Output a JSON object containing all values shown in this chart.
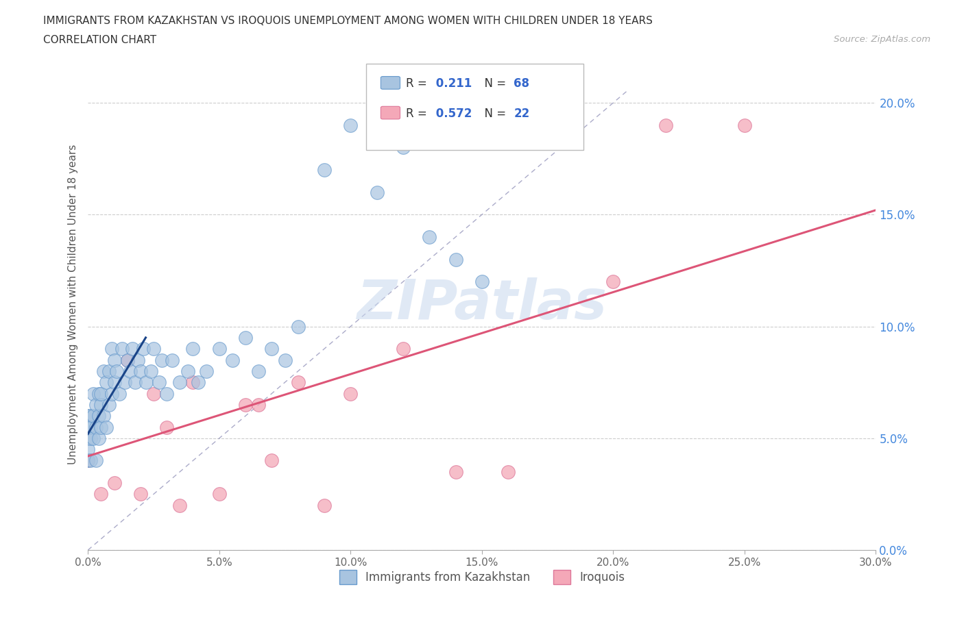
{
  "title_line1": "IMMIGRANTS FROM KAZAKHSTAN VS IROQUOIS UNEMPLOYMENT AMONG WOMEN WITH CHILDREN UNDER 18 YEARS",
  "title_line2": "CORRELATION CHART",
  "source_text": "Source: ZipAtlas.com",
  "ylabel": "Unemployment Among Women with Children Under 18 years",
  "watermark": "ZIPatlas",
  "xlim": [
    0.0,
    0.3
  ],
  "ylim": [
    0.0,
    0.22
  ],
  "xticks": [
    0.0,
    0.05,
    0.1,
    0.15,
    0.2,
    0.25,
    0.3
  ],
  "xticklabels": [
    "0.0%",
    "5.0%",
    "10.0%",
    "15.0%",
    "20.0%",
    "25.0%",
    "30.0%"
  ],
  "yticks": [
    0.0,
    0.05,
    0.1,
    0.15,
    0.2
  ],
  "yticklabels": [
    "0.0%",
    "5.0%",
    "10.0%",
    "15.0%",
    "20.0%"
  ],
  "kazakhstan_color": "#a8c4e0",
  "kazakhstan_edge": "#6699cc",
  "iroquois_color": "#f4a8b8",
  "iroquois_edge": "#dd7799",
  "kazakhstan_line_color": "#1a4488",
  "iroquois_line_color": "#dd5577",
  "diagonal_color": "#9090b8",
  "R_kazakhstan": 0.211,
  "N_kazakhstan": 68,
  "R_iroquois": 0.572,
  "N_iroquois": 22,
  "kazakhstan_x": [
    0.0,
    0.0,
    0.0,
    0.0,
    0.0,
    0.001,
    0.001,
    0.001,
    0.001,
    0.002,
    0.002,
    0.002,
    0.003,
    0.003,
    0.003,
    0.004,
    0.004,
    0.004,
    0.005,
    0.005,
    0.005,
    0.006,
    0.006,
    0.007,
    0.007,
    0.008,
    0.008,
    0.009,
    0.009,
    0.01,
    0.01,
    0.011,
    0.012,
    0.013,
    0.014,
    0.015,
    0.016,
    0.017,
    0.018,
    0.019,
    0.02,
    0.021,
    0.022,
    0.024,
    0.025,
    0.027,
    0.028,
    0.03,
    0.032,
    0.035,
    0.038,
    0.04,
    0.042,
    0.045,
    0.05,
    0.055,
    0.06,
    0.065,
    0.07,
    0.075,
    0.08,
    0.09,
    0.1,
    0.11,
    0.12,
    0.13,
    0.14,
    0.15
  ],
  "kazakhstan_y": [
    0.05,
    0.06,
    0.04,
    0.055,
    0.045,
    0.05,
    0.06,
    0.04,
    0.055,
    0.06,
    0.05,
    0.07,
    0.055,
    0.065,
    0.04,
    0.06,
    0.05,
    0.07,
    0.065,
    0.055,
    0.07,
    0.06,
    0.08,
    0.055,
    0.075,
    0.065,
    0.08,
    0.07,
    0.09,
    0.075,
    0.085,
    0.08,
    0.07,
    0.09,
    0.075,
    0.085,
    0.08,
    0.09,
    0.075,
    0.085,
    0.08,
    0.09,
    0.075,
    0.08,
    0.09,
    0.075,
    0.085,
    0.07,
    0.085,
    0.075,
    0.08,
    0.09,
    0.075,
    0.08,
    0.09,
    0.085,
    0.095,
    0.08,
    0.09,
    0.085,
    0.1,
    0.17,
    0.19,
    0.16,
    0.18,
    0.14,
    0.13,
    0.12
  ],
  "iroquois_x": [
    0.0,
    0.005,
    0.01,
    0.015,
    0.02,
    0.025,
    0.03,
    0.035,
    0.04,
    0.05,
    0.06,
    0.065,
    0.07,
    0.08,
    0.09,
    0.1,
    0.12,
    0.14,
    0.16,
    0.2,
    0.22,
    0.25
  ],
  "iroquois_y": [
    0.04,
    0.025,
    0.03,
    0.085,
    0.025,
    0.07,
    0.055,
    0.02,
    0.075,
    0.025,
    0.065,
    0.065,
    0.04,
    0.075,
    0.02,
    0.07,
    0.09,
    0.035,
    0.035,
    0.12,
    0.19,
    0.19
  ],
  "kaz_line_x0": 0.0,
  "kaz_line_x1": 0.022,
  "kaz_line_y0": 0.052,
  "kaz_line_y1": 0.095,
  "iro_line_x0": 0.0,
  "iro_line_x1": 0.3,
  "iro_line_y0": 0.042,
  "iro_line_y1": 0.152
}
